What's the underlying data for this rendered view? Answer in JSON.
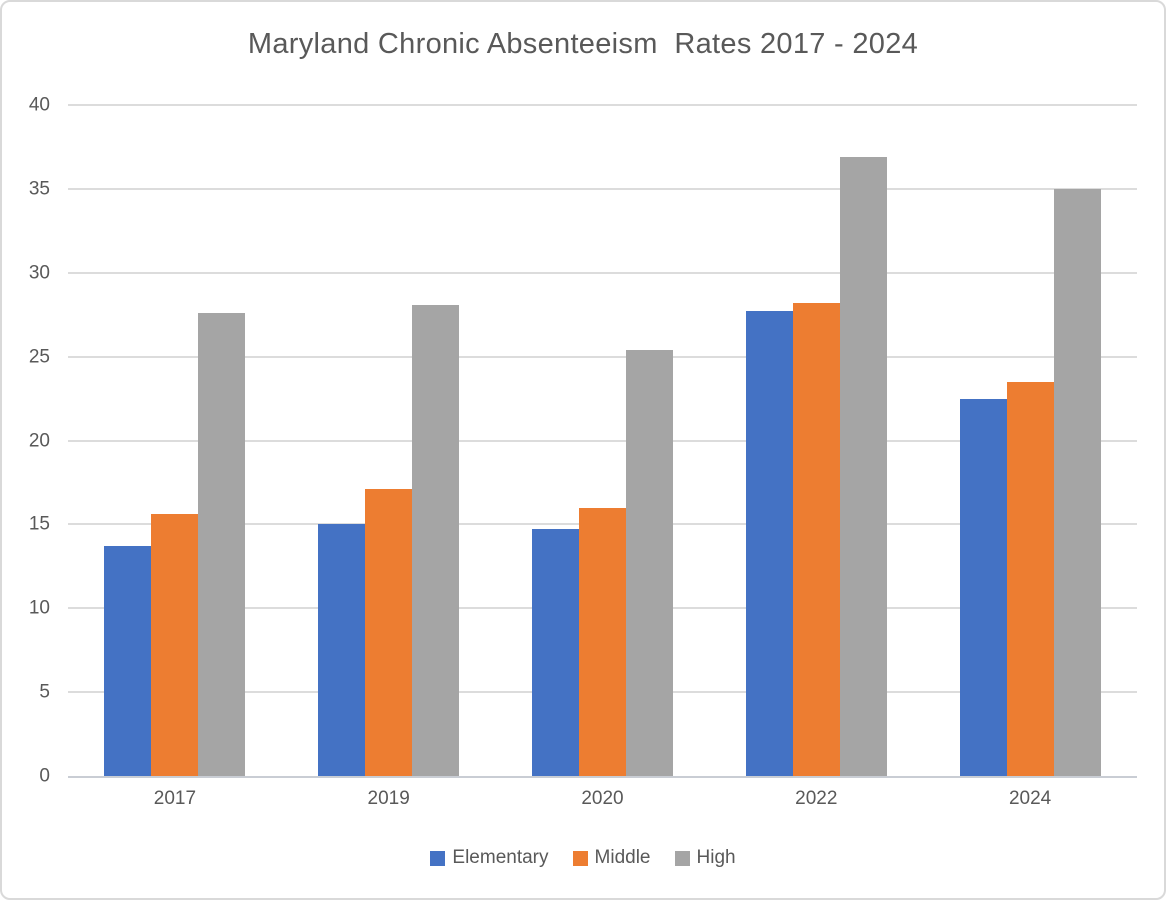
{
  "chart_data": {
    "type": "bar",
    "title": "Maryland Chronic Absenteeism  Rates 2017 - 2024",
    "categories": [
      "2017",
      "2019",
      "2020",
      "2022",
      "2024"
    ],
    "series": [
      {
        "name": "Elementary",
        "color": "#4472C4",
        "values": [
          13.7,
          15.0,
          14.7,
          27.7,
          22.5
        ]
      },
      {
        "name": "Middle",
        "color": "#ED7D31",
        "values": [
          15.6,
          17.1,
          16.0,
          28.2,
          23.5
        ]
      },
      {
        "name": "High",
        "color": "#A5A5A5",
        "values": [
          27.6,
          28.1,
          25.4,
          36.9,
          35.0
        ]
      }
    ],
    "xlabel": "",
    "ylabel": "",
    "ylim": [
      0,
      40
    ],
    "yticks": [
      0,
      5,
      10,
      15,
      20,
      25,
      30,
      35,
      40
    ],
    "grid": true,
    "legend_position": "bottom"
  },
  "colors": {
    "title_text": "#595959",
    "axis_text": "#595959",
    "gridline": "#DCDCDC",
    "axis_line": "#C9CDD4",
    "frame_border": "#D9D9D9",
    "background": "#FFFFFF"
  }
}
